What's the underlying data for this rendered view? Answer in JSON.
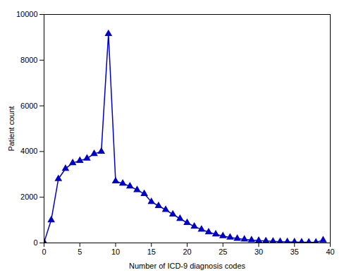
{
  "chart_data": {
    "type": "line",
    "x": [
      0,
      1,
      2,
      3,
      4,
      5,
      6,
      7,
      8,
      9,
      10,
      11,
      12,
      13,
      14,
      15,
      16,
      17,
      18,
      19,
      20,
      21,
      22,
      23,
      24,
      25,
      26,
      27,
      28,
      29,
      30,
      31,
      32,
      33,
      34,
      35,
      36,
      37,
      38,
      39
    ],
    "values": [
      30,
      1000,
      2800,
      3250,
      3500,
      3600,
      3700,
      3900,
      4000,
      9150,
      2700,
      2600,
      2480,
      2320,
      2150,
      1800,
      1620,
      1450,
      1250,
      1060,
      880,
      720,
      590,
      470,
      380,
      300,
      240,
      190,
      155,
      125,
      100,
      82,
      68,
      56,
      46,
      38,
      32,
      28,
      24,
      120
    ],
    "color": "#0000CC",
    "marker": "triangle",
    "xlabel": "Number of ICD-9 diagnosis codes",
    "ylabel": "Patient count",
    "xlim": [
      0,
      40
    ],
    "ylim": [
      0,
      10000
    ],
    "xticks": [
      0,
      5,
      10,
      15,
      20,
      25,
      30,
      35,
      40
    ],
    "yticks": [
      0,
      2000,
      4000,
      6000,
      8000,
      10000
    ],
    "grid": false
  }
}
